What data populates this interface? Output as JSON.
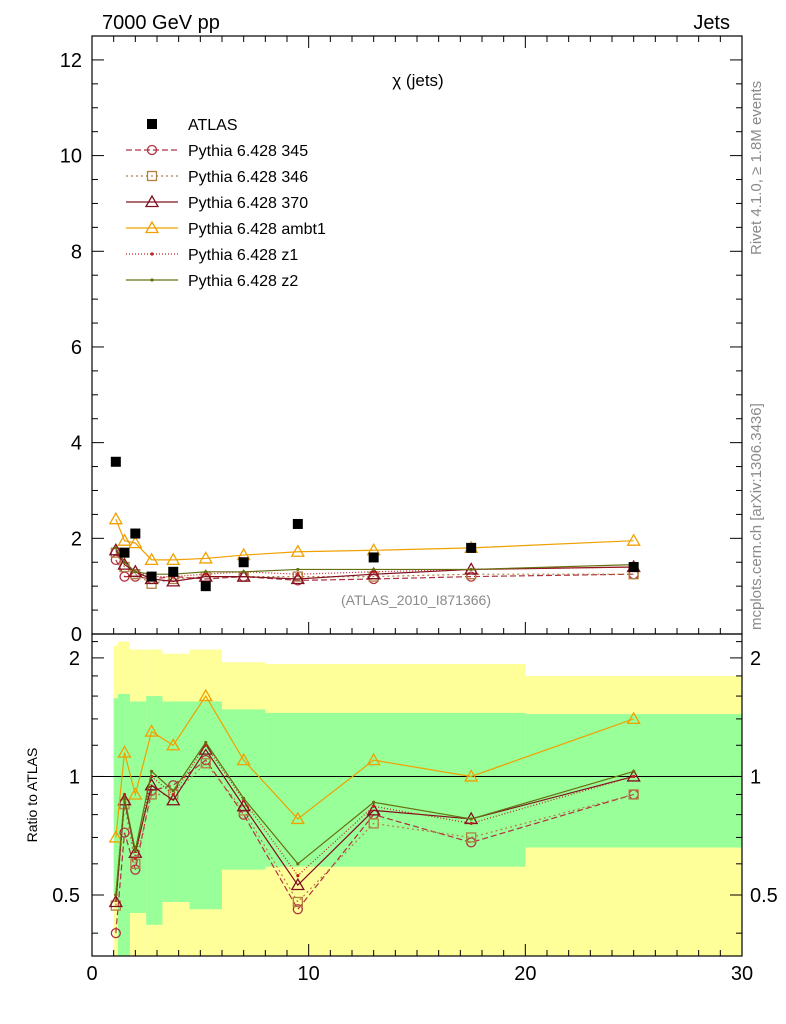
{
  "header": {
    "left_title": "7000 GeV pp",
    "right_title": "Jets"
  },
  "side_labels": {
    "rivet": "Rivet 4.1.0, ≥ 1.8M events",
    "mcplots": "mcplots.cern.ch [arXiv:1306.3436]"
  },
  "chart_data": {
    "type": "scatter",
    "title": "χ (jets)",
    "analysis_tag": "(ATLAS_2010_I871366)",
    "xlabel": "",
    "ylabel_main": "",
    "ylabel_ratio": "Ratio to ATLAS",
    "xlim": [
      0,
      30
    ],
    "ylim_main": [
      0,
      12.5
    ],
    "ylim_ratio": [
      0.35,
      2.3
    ],
    "ratio_scale": "log",
    "xticks": [
      0,
      10,
      20,
      30
    ],
    "yticks_main": [
      0,
      2,
      4,
      6,
      8,
      10,
      12
    ],
    "yticks_ratio": [
      0.5,
      1,
      2
    ],
    "legend_position": "top-left",
    "x": [
      1.1,
      1.5,
      2.0,
      2.75,
      3.75,
      5.25,
      7.0,
      9.5,
      13.0,
      17.5,
      25.0
    ],
    "data": {
      "name": "ATLAS",
      "values": [
        3.6,
        1.7,
        2.1,
        1.2,
        1.3,
        1.0,
        1.5,
        2.3,
        1.6,
        1.8,
        1.4
      ]
    },
    "series": [
      {
        "name": "Pythia 6.428 345",
        "color": "#b03040",
        "dash": "6,3",
        "marker": "circle",
        "values": [
          1.55,
          1.2,
          1.2,
          1.15,
          1.2,
          1.15,
          1.2,
          1.12,
          1.15,
          1.2,
          1.25
        ],
        "ratio": [
          0.4,
          0.72,
          0.58,
          0.92,
          0.95,
          1.1,
          0.8,
          0.46,
          0.8,
          0.68,
          0.9
        ]
      },
      {
        "name": "Pythia 6.428 346",
        "color": "#b08040",
        "dash": "2,3",
        "marker": "square",
        "values": [
          1.7,
          1.4,
          1.25,
          1.05,
          1.15,
          1.2,
          1.2,
          1.2,
          1.2,
          1.25,
          1.25
        ],
        "ratio": [
          0.47,
          0.85,
          0.6,
          0.9,
          0.9,
          1.08,
          0.82,
          0.48,
          0.76,
          0.7,
          0.9
        ]
      },
      {
        "name": "Pythia 6.428 370",
        "color": "#801020",
        "dash": "",
        "marker": "triangle",
        "values": [
          1.75,
          1.45,
          1.3,
          1.15,
          1.1,
          1.2,
          1.2,
          1.15,
          1.25,
          1.35,
          1.4
        ],
        "ratio": [
          0.48,
          0.87,
          0.64,
          0.95,
          0.87,
          1.17,
          0.84,
          0.53,
          0.82,
          0.78,
          1.0
        ]
      },
      {
        "name": "Pythia 6.428 ambt1",
        "color": "#f0a000",
        "dash": "",
        "marker": "triangle",
        "values": [
          2.4,
          1.95,
          1.9,
          1.55,
          1.55,
          1.58,
          1.65,
          1.72,
          1.75,
          1.8,
          1.95
        ],
        "ratio": [
          0.7,
          1.15,
          0.9,
          1.3,
          1.2,
          1.6,
          1.1,
          0.78,
          1.1,
          1.0,
          1.4
        ]
      },
      {
        "name": "Pythia 6.428 z1",
        "color": "#c02020",
        "dash": "1,2",
        "marker": "dot",
        "values": [
          1.8,
          1.5,
          1.3,
          1.2,
          1.2,
          1.25,
          1.3,
          1.25,
          1.3,
          1.35,
          1.4
        ],
        "ratio": [
          0.5,
          0.9,
          0.62,
          1.0,
          0.9,
          1.2,
          0.87,
          0.56,
          0.84,
          0.76,
          1.0
        ]
      },
      {
        "name": "Pythia 6.428 z2",
        "color": "#667010",
        "dash": "",
        "marker": "dot",
        "values": [
          1.8,
          1.5,
          1.3,
          1.25,
          1.25,
          1.3,
          1.3,
          1.35,
          1.35,
          1.35,
          1.45
        ],
        "ratio": [
          0.5,
          0.88,
          0.65,
          1.03,
          0.92,
          1.22,
          0.88,
          0.6,
          0.86,
          0.78,
          1.03
        ]
      }
    ],
    "uncertainty_bands": {
      "edges": [
        1,
        1.2,
        1.75,
        2.5,
        3.25,
        4.5,
        6,
        8,
        20,
        30
      ],
      "inner": {
        "color": "#99ff99",
        "low": [
          0.5,
          0.35,
          0.45,
          0.42,
          0.48,
          0.46,
          0.58,
          0.59,
          0.66
        ],
        "high": [
          1.58,
          1.62,
          1.55,
          1.6,
          1.55,
          1.55,
          1.48,
          1.45,
          1.44
        ]
      },
      "outer": {
        "color": "#ffff99",
        "low": [
          0.35,
          0.35,
          0.35,
          0.35,
          0.35,
          0.35,
          0.35,
          0.35,
          0.35
        ],
        "high": [
          2.15,
          2.2,
          2.1,
          2.1,
          2.05,
          2.1,
          1.95,
          1.93,
          1.8
        ]
      }
    }
  }
}
